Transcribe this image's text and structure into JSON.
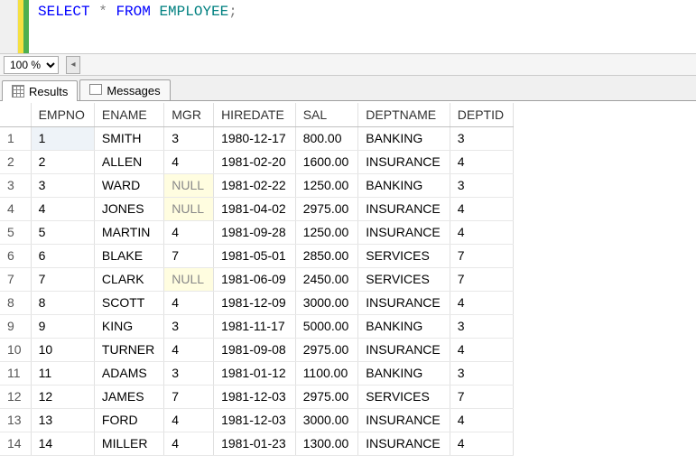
{
  "editor": {
    "sql_tokens": [
      {
        "text": "SELECT",
        "cls": "kw-blue"
      },
      {
        "text": " ",
        "cls": ""
      },
      {
        "text": "*",
        "cls": "kw-gray"
      },
      {
        "text": " ",
        "cls": ""
      },
      {
        "text": "FROM",
        "cls": "kw-blue"
      },
      {
        "text": " ",
        "cls": ""
      },
      {
        "text": "EMPLOYEE",
        "cls": "kw-green"
      },
      {
        "text": ";",
        "cls": "kw-gray"
      }
    ]
  },
  "zoom": {
    "value": "100 %"
  },
  "tabs": {
    "results_label": "Results",
    "messages_label": "Messages"
  },
  "grid": {
    "columns": [
      "EMPNO",
      "ENAME",
      "MGR",
      "HIREDATE",
      "SAL",
      "DEPTNAME",
      "DEPTID"
    ],
    "null_text": "NULL",
    "rows": [
      [
        "1",
        "SMITH",
        "3",
        "1980-12-17",
        "800.00",
        "BANKING",
        "3"
      ],
      [
        "2",
        "ALLEN",
        "4",
        "1981-02-20",
        "1600.00",
        "INSURANCE",
        "4"
      ],
      [
        "3",
        "WARD",
        null,
        "1981-02-22",
        "1250.00",
        "BANKING",
        "3"
      ],
      [
        "4",
        "JONES",
        null,
        "1981-04-02",
        "2975.00",
        "INSURANCE",
        "4"
      ],
      [
        "5",
        "MARTIN",
        "4",
        "1981-09-28",
        "1250.00",
        "INSURANCE",
        "4"
      ],
      [
        "6",
        "BLAKE",
        "7",
        "1981-05-01",
        "2850.00",
        "SERVICES",
        "7"
      ],
      [
        "7",
        "CLARK",
        null,
        "1981-06-09",
        "2450.00",
        "SERVICES",
        "7"
      ],
      [
        "8",
        "SCOTT",
        "4",
        "1981-12-09",
        "3000.00",
        "INSURANCE",
        "4"
      ],
      [
        "9",
        "KING",
        "3",
        "1981-11-17",
        "5000.00",
        "BANKING",
        "3"
      ],
      [
        "10",
        "TURNER",
        "4",
        "1981-09-08",
        "2975.00",
        "INSURANCE",
        "4"
      ],
      [
        "11",
        "ADAMS",
        "3",
        "1981-01-12",
        "1100.00",
        "BANKING",
        "3"
      ],
      [
        "12",
        "JAMES",
        "7",
        "1981-12-03",
        "2975.00",
        "SERVICES",
        "7"
      ],
      [
        "13",
        "FORD",
        "4",
        "1981-12-03",
        "3000.00",
        "INSURANCE",
        "4"
      ],
      [
        "14",
        "MILLER",
        "4",
        "1981-01-23",
        "1300.00",
        "INSURANCE",
        "4"
      ]
    ],
    "selected_cell": {
      "row": 0,
      "col": 0
    }
  },
  "colors": {
    "keyword_blue": "#0000ff",
    "identifier_teal": "#008080",
    "operator_gray": "#808080",
    "null_bg": "#fffde0",
    "selected_bg": "#eef3f8",
    "grid_border": "#e0e0e0",
    "header_border": "#c0c0c0"
  }
}
